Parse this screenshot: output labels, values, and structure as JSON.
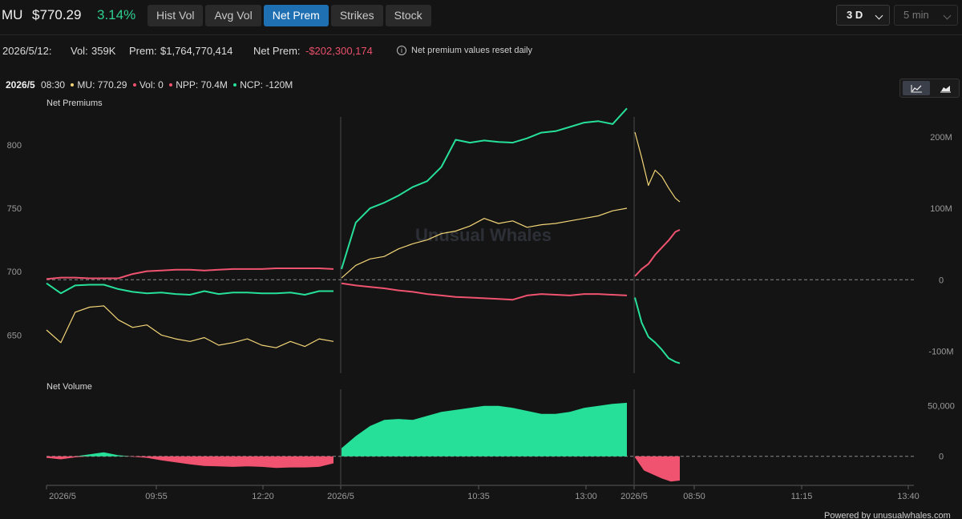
{
  "header": {
    "ticker": "MU",
    "price": "$770.29",
    "change": "3.14%",
    "tabs": [
      {
        "label": "Hist Vol",
        "active": false
      },
      {
        "label": "Avg Vol",
        "active": false
      },
      {
        "label": "Net Prem",
        "active": true
      },
      {
        "label": "Strikes",
        "active": false
      },
      {
        "label": "Stock",
        "active": false
      }
    ],
    "range": "3 D",
    "interval": "5 min"
  },
  "stats": {
    "date": "2026/5/12:",
    "vol_label": "Vol:",
    "vol_value": "359K",
    "prem_label": "Prem:",
    "prem_value": "$1,764,770,414",
    "net_prem_label": "Net Prem:",
    "net_prem_value": "-$202,300,174",
    "note": "Net premium values reset daily"
  },
  "crosshair": {
    "date": "2026/5",
    "time": "08:30",
    "mu": "MU: 770.29",
    "vol": "Vol: 0",
    "npp": "NPP: 70.4M",
    "ncp": "NCP: -120M"
  },
  "colors": {
    "calls": "#26e09a",
    "puts": "#f0536f",
    "stock": "#f2d577",
    "accent": "#1f6fb3"
  },
  "footer": "Powered by unusualwhales.com",
  "chart_data": [
    {
      "type": "line",
      "title": "Net Premiums",
      "watermark": "Unusual Whales",
      "left_axis": {
        "label": "",
        "ticks": [
          650,
          700,
          750,
          800
        ],
        "range": [
          630,
          822
        ]
      },
      "right_axis": {
        "label": "",
        "ticks": [
          -100,
          0,
          100,
          200
        ],
        "tick_labels": [
          "-100M",
          "0",
          "100M",
          "200M"
        ],
        "range": [
          -113,
          228
        ]
      },
      "zero_line": 0,
      "x_tick_labels": [
        "2026/5",
        "09:55",
        "12:20",
        "2026/5",
        "10:35",
        "13:00",
        "2026/5",
        "08:50",
        "11:15",
        "13:40"
      ],
      "sessions": [
        {
          "x": [
            0,
            0.05,
            0.1,
            0.15,
            0.2,
            0.25,
            0.3,
            0.35,
            0.4,
            0.45,
            0.5,
            0.55,
            0.6,
            0.65,
            0.7,
            0.75,
            0.8,
            0.85,
            0.9,
            0.95,
            1.0
          ],
          "stock": [
            654,
            644,
            668,
            672,
            673,
            662,
            656,
            658,
            650,
            647,
            645,
            648,
            642,
            644,
            647,
            642,
            640,
            645,
            641,
            647,
            645
          ],
          "ncp": [
            -5,
            -19,
            -8,
            -7,
            -7,
            -13,
            -17,
            -19,
            -18,
            -20,
            -21,
            -16,
            -20,
            -18,
            -18,
            -19,
            -19,
            -18,
            -21,
            -16,
            -16
          ],
          "npp": [
            1,
            3,
            3,
            2,
            2,
            2,
            8,
            12,
            13,
            14,
            14,
            13,
            14,
            15,
            15,
            15,
            16,
            16,
            16,
            16,
            15
          ]
        },
        {
          "x": [
            0,
            0.05,
            0.1,
            0.15,
            0.2,
            0.25,
            0.3,
            0.35,
            0.4,
            0.45,
            0.5,
            0.55,
            0.6,
            0.65,
            0.7,
            0.75,
            0.8,
            0.85,
            0.9,
            0.95,
            1.0
          ],
          "stock": [
            695,
            705,
            710,
            712,
            718,
            722,
            725,
            730,
            732,
            736,
            742,
            738,
            740,
            735,
            737,
            738,
            740,
            742,
            744,
            748,
            750
          ],
          "ncp": [
            15,
            80,
            100,
            108,
            118,
            130,
            138,
            158,
            196,
            192,
            195,
            193,
            192,
            198,
            206,
            208,
            214,
            220,
            222,
            218,
            240
          ],
          "npp": [
            -5,
            -8,
            -10,
            -12,
            -15,
            -17,
            -20,
            -22,
            -24,
            -25,
            -26,
            -27,
            -28,
            -22,
            -20,
            -21,
            -22,
            -20,
            -20,
            -21,
            -22
          ]
        },
        {
          "x": [
            0,
            0.15,
            0.3,
            0.45,
            0.6,
            0.75,
            0.9,
            1.0
          ],
          "stock": [
            810,
            790,
            768,
            780,
            775,
            766,
            758,
            755
          ],
          "ncp": [
            -25,
            -60,
            -80,
            -88,
            -98,
            -110,
            -115,
            -117
          ],
          "npp": [
            5,
            15,
            22,
            35,
            45,
            55,
            67,
            70
          ]
        }
      ],
      "series": [
        {
          "name": "MU",
          "axis": "left"
        },
        {
          "name": "NCP",
          "axis": "right"
        },
        {
          "name": "NPP",
          "axis": "right"
        }
      ]
    },
    {
      "type": "area",
      "title": "Net Volume",
      "right_axis": {
        "label": "",
        "ticks": [
          0,
          50000
        ],
        "tick_labels": [
          "0",
          "50,000"
        ],
        "range": [
          -28000,
          68000
        ]
      },
      "sessions": [
        {
          "x": [
            0,
            0.05,
            0.1,
            0.15,
            0.2,
            0.25,
            0.3,
            0.35,
            0.4,
            0.45,
            0.5,
            0.55,
            0.6,
            0.65,
            0.7,
            0.75,
            0.8,
            0.85,
            0.9,
            0.95,
            1.0
          ],
          "values": [
            -1500,
            -3000,
            -1000,
            2000,
            4000,
            1000,
            -500,
            -1500,
            -4000,
            -6000,
            -8000,
            -9500,
            -10000,
            -10500,
            -10000,
            -10500,
            -11500,
            -11000,
            -11000,
            -10500,
            -7000
          ]
        },
        {
          "x": [
            0,
            0.05,
            0.1,
            0.15,
            0.2,
            0.25,
            0.3,
            0.35,
            0.4,
            0.45,
            0.5,
            0.55,
            0.6,
            0.65,
            0.7,
            0.75,
            0.8,
            0.85,
            0.9,
            0.95,
            1.0
          ],
          "values": [
            8000,
            20000,
            30000,
            36000,
            37000,
            36000,
            40000,
            44000,
            46000,
            48000,
            50000,
            50000,
            48000,
            45000,
            42000,
            42000,
            44000,
            48000,
            50000,
            52000,
            53000
          ]
        },
        {
          "x": [
            0,
            0.2,
            0.4,
            0.6,
            0.8,
            1.0
          ],
          "values": [
            -1000,
            -14000,
            -18000,
            -22000,
            -25000,
            -24000
          ]
        }
      ]
    }
  ]
}
